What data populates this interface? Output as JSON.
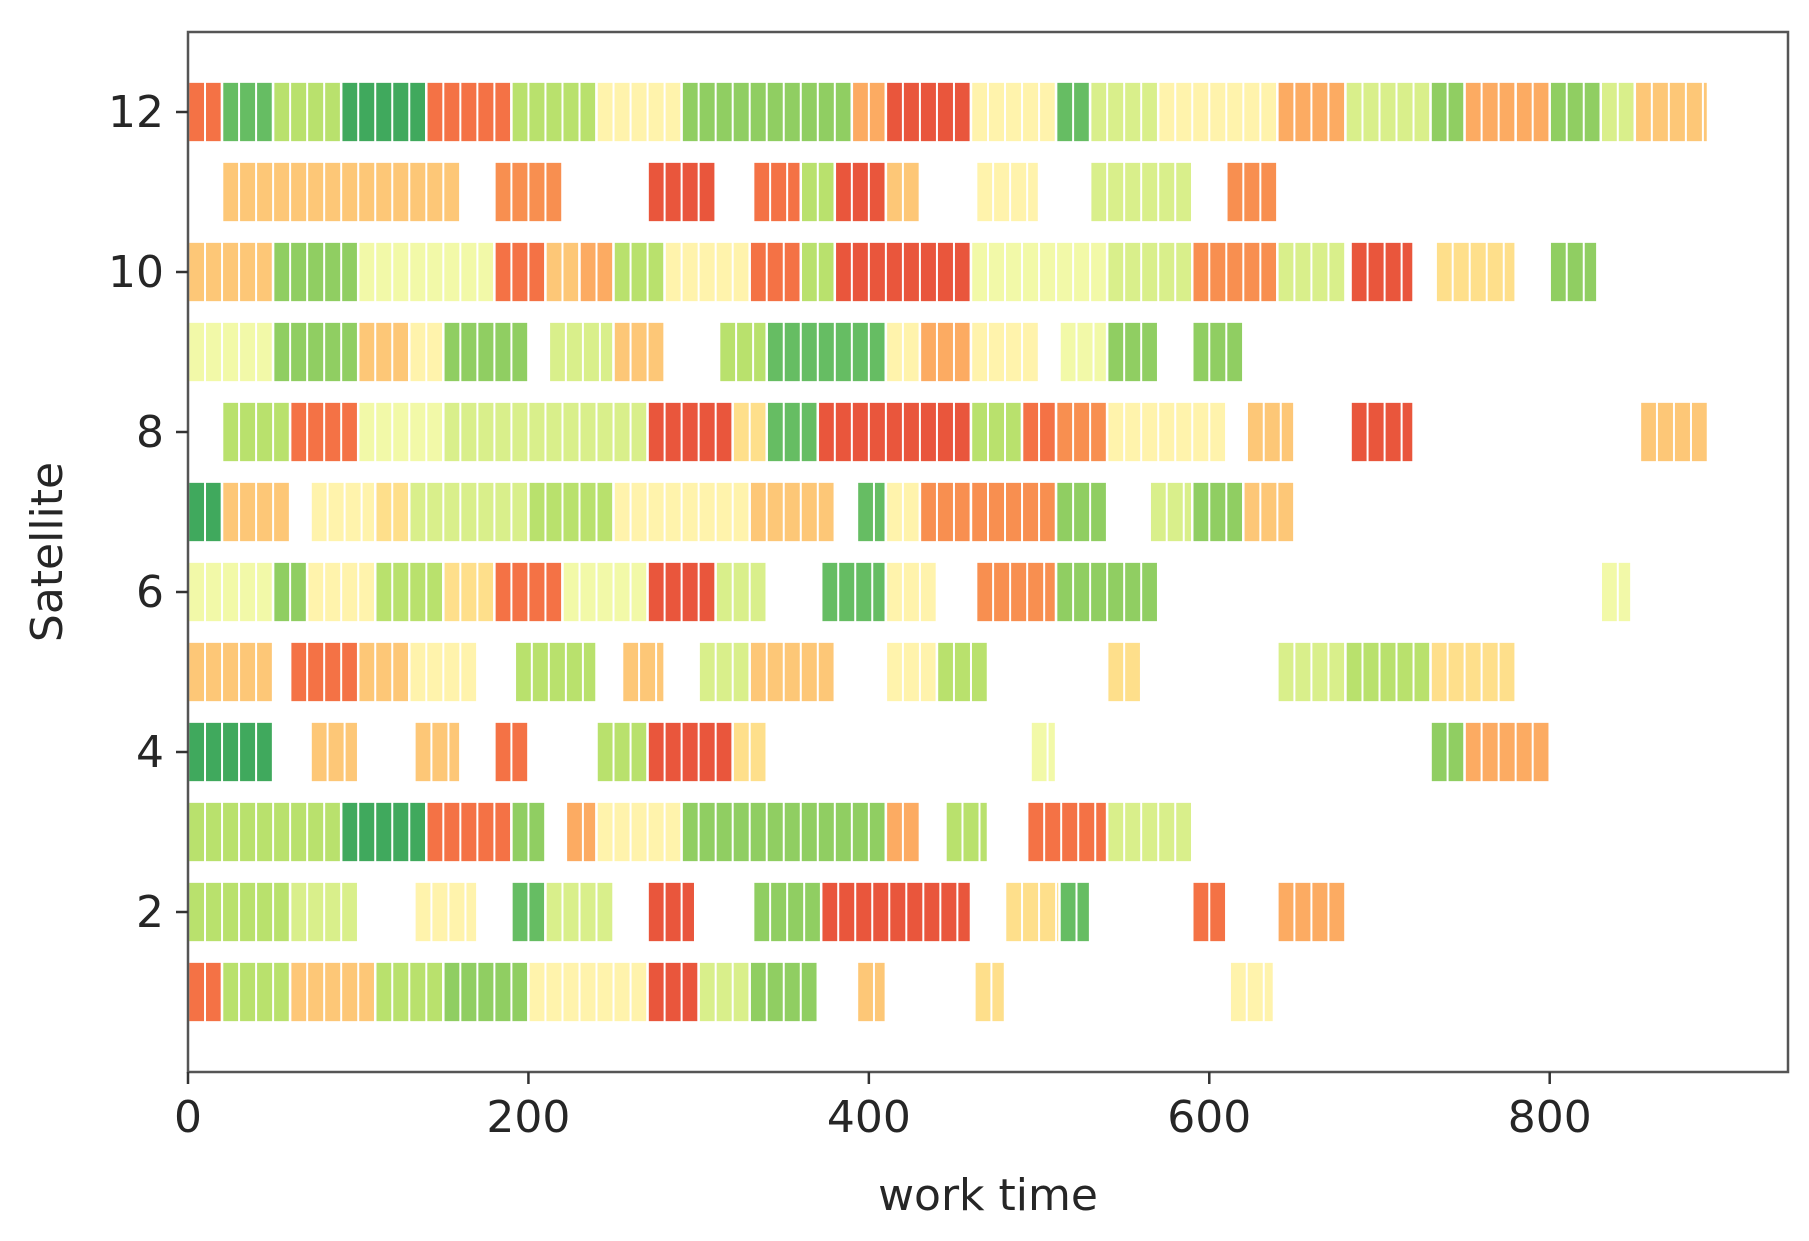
{
  "chart_data": {
    "type": "broken-barh",
    "title": "",
    "xlabel": "work time",
    "ylabel": "Satellite",
    "xlim": [
      0,
      940
    ],
    "ylim": [
      0,
      13
    ],
    "x_ticks": [
      0,
      200,
      400,
      600,
      800
    ],
    "x_tick_labels": [
      "0",
      "200",
      "400",
      "600",
      "800"
    ],
    "y_ticks": [
      2,
      4,
      6,
      8,
      10,
      12
    ],
    "y_tick_labels": [
      "2",
      "4",
      "6",
      "8",
      "10",
      "12"
    ],
    "grid": false,
    "legend": false,
    "colormap_hint": "RdYlGn",
    "palette": [
      "#e9563c",
      "#f47245",
      "#f88f50",
      "#fcab62",
      "#fdc777",
      "#fedf8b",
      "#fff3ac",
      "#f2f9a8",
      "#d9ef8b",
      "#b9e16d",
      "#90ce62",
      "#66bd63",
      "#40a95d"
    ],
    "rows": [
      {
        "satellite": 1,
        "segments": [
          {
            "start": 0,
            "end": 20,
            "level": 1
          },
          {
            "start": 20,
            "end": 60,
            "level": 9
          },
          {
            "start": 60,
            "end": 110,
            "level": 4
          },
          {
            "start": 110,
            "end": 150,
            "level": 9
          },
          {
            "start": 150,
            "end": 200,
            "level": 10
          },
          {
            "start": 200,
            "end": 270,
            "level": 6
          },
          {
            "start": 270,
            "end": 300,
            "level": 0
          },
          {
            "start": 300,
            "end": 330,
            "level": 8
          },
          {
            "start": 330,
            "end": 370,
            "level": 10
          },
          {
            "start": 393,
            "end": 410,
            "level": 4
          },
          {
            "start": 462,
            "end": 480,
            "level": 5
          },
          {
            "start": 612,
            "end": 638,
            "level": 6
          }
        ]
      },
      {
        "satellite": 2,
        "segments": [
          {
            "start": 0,
            "end": 60,
            "level": 9
          },
          {
            "start": 60,
            "end": 100,
            "level": 8
          },
          {
            "start": 133,
            "end": 170,
            "level": 6
          },
          {
            "start": 190,
            "end": 210,
            "level": 11
          },
          {
            "start": 210,
            "end": 250,
            "level": 8
          },
          {
            "start": 270,
            "end": 298,
            "level": 0
          },
          {
            "start": 332,
            "end": 372,
            "level": 10
          },
          {
            "start": 372,
            "end": 460,
            "level": 0
          },
          {
            "start": 480,
            "end": 520,
            "level": 5
          },
          {
            "start": 512,
            "end": 530,
            "level": 11
          },
          {
            "start": 590,
            "end": 610,
            "level": 1
          },
          {
            "start": 640,
            "end": 680,
            "level": 3
          }
        ]
      },
      {
        "satellite": 3,
        "segments": [
          {
            "start": 0,
            "end": 90,
            "level": 9
          },
          {
            "start": 90,
            "end": 140,
            "level": 12
          },
          {
            "start": 140,
            "end": 190,
            "level": 1
          },
          {
            "start": 190,
            "end": 210,
            "level": 10
          },
          {
            "start": 222,
            "end": 240,
            "level": 3
          },
          {
            "start": 240,
            "end": 290,
            "level": 6
          },
          {
            "start": 290,
            "end": 410,
            "level": 10
          },
          {
            "start": 410,
            "end": 430,
            "level": 3
          },
          {
            "start": 445,
            "end": 470,
            "level": 9
          },
          {
            "start": 493,
            "end": 540,
            "level": 1
          },
          {
            "start": 540,
            "end": 590,
            "level": 8
          }
        ]
      },
      {
        "satellite": 4,
        "segments": [
          {
            "start": 0,
            "end": 50,
            "level": 12
          },
          {
            "start": 72,
            "end": 100,
            "level": 4
          },
          {
            "start": 133,
            "end": 160,
            "level": 4
          },
          {
            "start": 180,
            "end": 200,
            "level": 1
          },
          {
            "start": 240,
            "end": 270,
            "level": 9
          },
          {
            "start": 270,
            "end": 320,
            "level": 0
          },
          {
            "start": 320,
            "end": 340,
            "level": 5
          },
          {
            "start": 495,
            "end": 510,
            "level": 7
          },
          {
            "start": 730,
            "end": 750,
            "level": 10
          },
          {
            "start": 750,
            "end": 800,
            "level": 3
          }
        ]
      },
      {
        "satellite": 5,
        "segments": [
          {
            "start": 0,
            "end": 50,
            "level": 4
          },
          {
            "start": 60,
            "end": 100,
            "level": 1
          },
          {
            "start": 100,
            "end": 130,
            "level": 4
          },
          {
            "start": 130,
            "end": 170,
            "level": 6
          },
          {
            "start": 192,
            "end": 240,
            "level": 9
          },
          {
            "start": 255,
            "end": 280,
            "level": 4
          },
          {
            "start": 300,
            "end": 330,
            "level": 8
          },
          {
            "start": 330,
            "end": 380,
            "level": 4
          },
          {
            "start": 410,
            "end": 440,
            "level": 6
          },
          {
            "start": 440,
            "end": 470,
            "level": 9
          },
          {
            "start": 540,
            "end": 560,
            "level": 5
          },
          {
            "start": 640,
            "end": 680,
            "level": 8
          },
          {
            "start": 680,
            "end": 730,
            "level": 9
          },
          {
            "start": 730,
            "end": 780,
            "level": 5
          }
        ]
      },
      {
        "satellite": 6,
        "segments": [
          {
            "start": 0,
            "end": 50,
            "level": 7
          },
          {
            "start": 50,
            "end": 70,
            "level": 10
          },
          {
            "start": 70,
            "end": 110,
            "level": 6
          },
          {
            "start": 110,
            "end": 150,
            "level": 9
          },
          {
            "start": 150,
            "end": 180,
            "level": 5
          },
          {
            "start": 180,
            "end": 220,
            "level": 1
          },
          {
            "start": 220,
            "end": 270,
            "level": 7
          },
          {
            "start": 270,
            "end": 310,
            "level": 0
          },
          {
            "start": 310,
            "end": 340,
            "level": 8
          },
          {
            "start": 372,
            "end": 410,
            "level": 11
          },
          {
            "start": 410,
            "end": 440,
            "level": 6
          },
          {
            "start": 463,
            "end": 510,
            "level": 2
          },
          {
            "start": 510,
            "end": 570,
            "level": 10
          },
          {
            "start": 830,
            "end": 848,
            "level": 7
          }
        ]
      },
      {
        "satellite": 7,
        "segments": [
          {
            "start": 0,
            "end": 20,
            "level": 12
          },
          {
            "start": 20,
            "end": 60,
            "level": 4
          },
          {
            "start": 72,
            "end": 110,
            "level": 6
          },
          {
            "start": 110,
            "end": 130,
            "level": 5
          },
          {
            "start": 130,
            "end": 200,
            "level": 8
          },
          {
            "start": 200,
            "end": 250,
            "level": 9
          },
          {
            "start": 250,
            "end": 330,
            "level": 6
          },
          {
            "start": 330,
            "end": 380,
            "level": 4
          },
          {
            "start": 393,
            "end": 410,
            "level": 11
          },
          {
            "start": 410,
            "end": 430,
            "level": 6
          },
          {
            "start": 430,
            "end": 460,
            "level": 2
          },
          {
            "start": 460,
            "end": 510,
            "level": 2
          },
          {
            "start": 510,
            "end": 540,
            "level": 10
          },
          {
            "start": 565,
            "end": 590,
            "level": 8
          },
          {
            "start": 590,
            "end": 620,
            "level": 10
          },
          {
            "start": 620,
            "end": 650,
            "level": 4
          }
        ]
      },
      {
        "satellite": 8,
        "segments": [
          {
            "start": 20,
            "end": 60,
            "level": 9
          },
          {
            "start": 60,
            "end": 100,
            "level": 1
          },
          {
            "start": 100,
            "end": 150,
            "level": 7
          },
          {
            "start": 150,
            "end": 270,
            "level": 8
          },
          {
            "start": 270,
            "end": 320,
            "level": 0
          },
          {
            "start": 320,
            "end": 340,
            "level": 5
          },
          {
            "start": 340,
            "end": 370,
            "level": 11
          },
          {
            "start": 370,
            "end": 460,
            "level": 0
          },
          {
            "start": 460,
            "end": 490,
            "level": 9
          },
          {
            "start": 490,
            "end": 510,
            "level": 1
          },
          {
            "start": 510,
            "end": 540,
            "level": 2
          },
          {
            "start": 540,
            "end": 610,
            "level": 6
          },
          {
            "start": 622,
            "end": 650,
            "level": 4
          },
          {
            "start": 683,
            "end": 720,
            "level": 0
          },
          {
            "start": 853,
            "end": 893,
            "level": 4
          }
        ]
      },
      {
        "satellite": 9,
        "segments": [
          {
            "start": 0,
            "end": 50,
            "level": 7
          },
          {
            "start": 50,
            "end": 100,
            "level": 10
          },
          {
            "start": 100,
            "end": 130,
            "level": 4
          },
          {
            "start": 130,
            "end": 150,
            "level": 6
          },
          {
            "start": 150,
            "end": 200,
            "level": 10
          },
          {
            "start": 212,
            "end": 250,
            "level": 8
          },
          {
            "start": 250,
            "end": 280,
            "level": 4
          },
          {
            "start": 312,
            "end": 340,
            "level": 9
          },
          {
            "start": 340,
            "end": 410,
            "level": 11
          },
          {
            "start": 410,
            "end": 430,
            "level": 6
          },
          {
            "start": 430,
            "end": 460,
            "level": 3
          },
          {
            "start": 460,
            "end": 500,
            "level": 6
          },
          {
            "start": 512,
            "end": 540,
            "level": 7
          },
          {
            "start": 540,
            "end": 570,
            "level": 10
          },
          {
            "start": 590,
            "end": 620,
            "level": 10
          }
        ]
      },
      {
        "satellite": 10,
        "segments": [
          {
            "start": 0,
            "end": 50,
            "level": 4
          },
          {
            "start": 50,
            "end": 100,
            "level": 10
          },
          {
            "start": 100,
            "end": 180,
            "level": 7
          },
          {
            "start": 180,
            "end": 210,
            "level": 1
          },
          {
            "start": 210,
            "end": 230,
            "level": 4
          },
          {
            "start": 230,
            "end": 250,
            "level": 3
          },
          {
            "start": 250,
            "end": 280,
            "level": 9
          },
          {
            "start": 280,
            "end": 330,
            "level": 6
          },
          {
            "start": 330,
            "end": 360,
            "level": 1
          },
          {
            "start": 360,
            "end": 380,
            "level": 9
          },
          {
            "start": 380,
            "end": 460,
            "level": 0
          },
          {
            "start": 460,
            "end": 540,
            "level": 7
          },
          {
            "start": 540,
            "end": 590,
            "level": 8
          },
          {
            "start": 590,
            "end": 640,
            "level": 2
          },
          {
            "start": 640,
            "end": 680,
            "level": 8
          },
          {
            "start": 683,
            "end": 720,
            "level": 0
          },
          {
            "start": 733,
            "end": 780,
            "level": 5
          },
          {
            "start": 800,
            "end": 828,
            "level": 10
          }
        ]
      },
      {
        "satellite": 11,
        "segments": [
          {
            "start": 20,
            "end": 160,
            "level": 4
          },
          {
            "start": 180,
            "end": 220,
            "level": 2
          },
          {
            "start": 270,
            "end": 310,
            "level": 0
          },
          {
            "start": 332,
            "end": 360,
            "level": 1
          },
          {
            "start": 360,
            "end": 380,
            "level": 9
          },
          {
            "start": 380,
            "end": 410,
            "level": 0
          },
          {
            "start": 410,
            "end": 430,
            "level": 4
          },
          {
            "start": 463,
            "end": 500,
            "level": 6
          },
          {
            "start": 530,
            "end": 590,
            "level": 8
          },
          {
            "start": 610,
            "end": 640,
            "level": 2
          }
        ]
      },
      {
        "satellite": 12,
        "segments": [
          {
            "start": 0,
            "end": 20,
            "level": 1
          },
          {
            "start": 20,
            "end": 50,
            "level": 11
          },
          {
            "start": 50,
            "end": 90,
            "level": 9
          },
          {
            "start": 90,
            "end": 140,
            "level": 12
          },
          {
            "start": 140,
            "end": 190,
            "level": 1
          },
          {
            "start": 190,
            "end": 240,
            "level": 9
          },
          {
            "start": 240,
            "end": 290,
            "level": 6
          },
          {
            "start": 290,
            "end": 390,
            "level": 10
          },
          {
            "start": 390,
            "end": 410,
            "level": 3
          },
          {
            "start": 410,
            "end": 460,
            "level": 0
          },
          {
            "start": 460,
            "end": 510,
            "level": 6
          },
          {
            "start": 510,
            "end": 530,
            "level": 11
          },
          {
            "start": 530,
            "end": 570,
            "level": 8
          },
          {
            "start": 570,
            "end": 640,
            "level": 6
          },
          {
            "start": 640,
            "end": 680,
            "level": 3
          },
          {
            "start": 680,
            "end": 730,
            "level": 8
          },
          {
            "start": 730,
            "end": 750,
            "level": 10
          },
          {
            "start": 750,
            "end": 780,
            "level": 3
          },
          {
            "start": 780,
            "end": 800,
            "level": 3
          },
          {
            "start": 800,
            "end": 830,
            "level": 10
          },
          {
            "start": 830,
            "end": 850,
            "level": 8
          },
          {
            "start": 850,
            "end": 893,
            "level": 4
          }
        ]
      }
    ]
  }
}
